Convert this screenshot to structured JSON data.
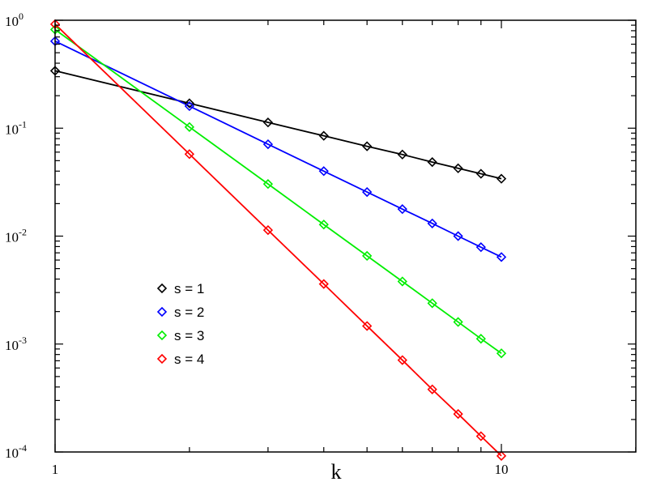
{
  "chart_data": {
    "type": "line",
    "xscale": "log",
    "yscale": "log",
    "xlim": [
      1,
      20
    ],
    "ylim": [
      0.0001,
      1
    ],
    "xlabel": "k",
    "ylabel": "",
    "x_ticks": [
      {
        "value": 1,
        "label": "1"
      },
      {
        "value": 10,
        "label": "10"
      }
    ],
    "y_ticks": [
      {
        "value": 1,
        "base": "10",
        "exp": "0"
      },
      {
        "value": 0.1,
        "base": "10",
        "exp": "-1"
      },
      {
        "value": 0.01,
        "base": "10",
        "exp": "-2"
      },
      {
        "value": 0.001,
        "base": "10",
        "exp": "-3"
      },
      {
        "value": 0.0001,
        "base": "10",
        "exp": "-4"
      }
    ],
    "marker": "diamond-open",
    "legend_position": "lower-left",
    "series": [
      {
        "name": "s = 1",
        "color": "#000000",
        "x": [
          1,
          2,
          3,
          4,
          5,
          6,
          7,
          8,
          9,
          10
        ],
        "y": [
          0.34,
          0.17,
          0.113,
          0.085,
          0.068,
          0.057,
          0.0485,
          0.0425,
          0.0378,
          0.034
        ]
      },
      {
        "name": "s = 2",
        "color": "#0000ff",
        "x": [
          1,
          2,
          3,
          4,
          5,
          6,
          7,
          8,
          9,
          10
        ],
        "y": [
          0.64,
          0.16,
          0.071,
          0.04,
          0.0256,
          0.0178,
          0.0131,
          0.01,
          0.0079,
          0.0064
        ]
      },
      {
        "name": "s = 3",
        "color": "#00ee00",
        "x": [
          1,
          2,
          3,
          4,
          5,
          6,
          7,
          8,
          9,
          10
        ],
        "y": [
          0.82,
          0.1025,
          0.0304,
          0.0128,
          0.00656,
          0.0038,
          0.00239,
          0.0016,
          0.00112,
          0.00082
        ]
      },
      {
        "name": "s = 4",
        "color": "#ff0000",
        "x": [
          1,
          2,
          3,
          4,
          5,
          6,
          7,
          8,
          9,
          10
        ],
        "y": [
          0.92,
          0.0575,
          0.01136,
          0.0036,
          0.00147,
          0.00071,
          0.00038,
          0.000225,
          0.00014,
          9.2e-05
        ]
      }
    ]
  }
}
